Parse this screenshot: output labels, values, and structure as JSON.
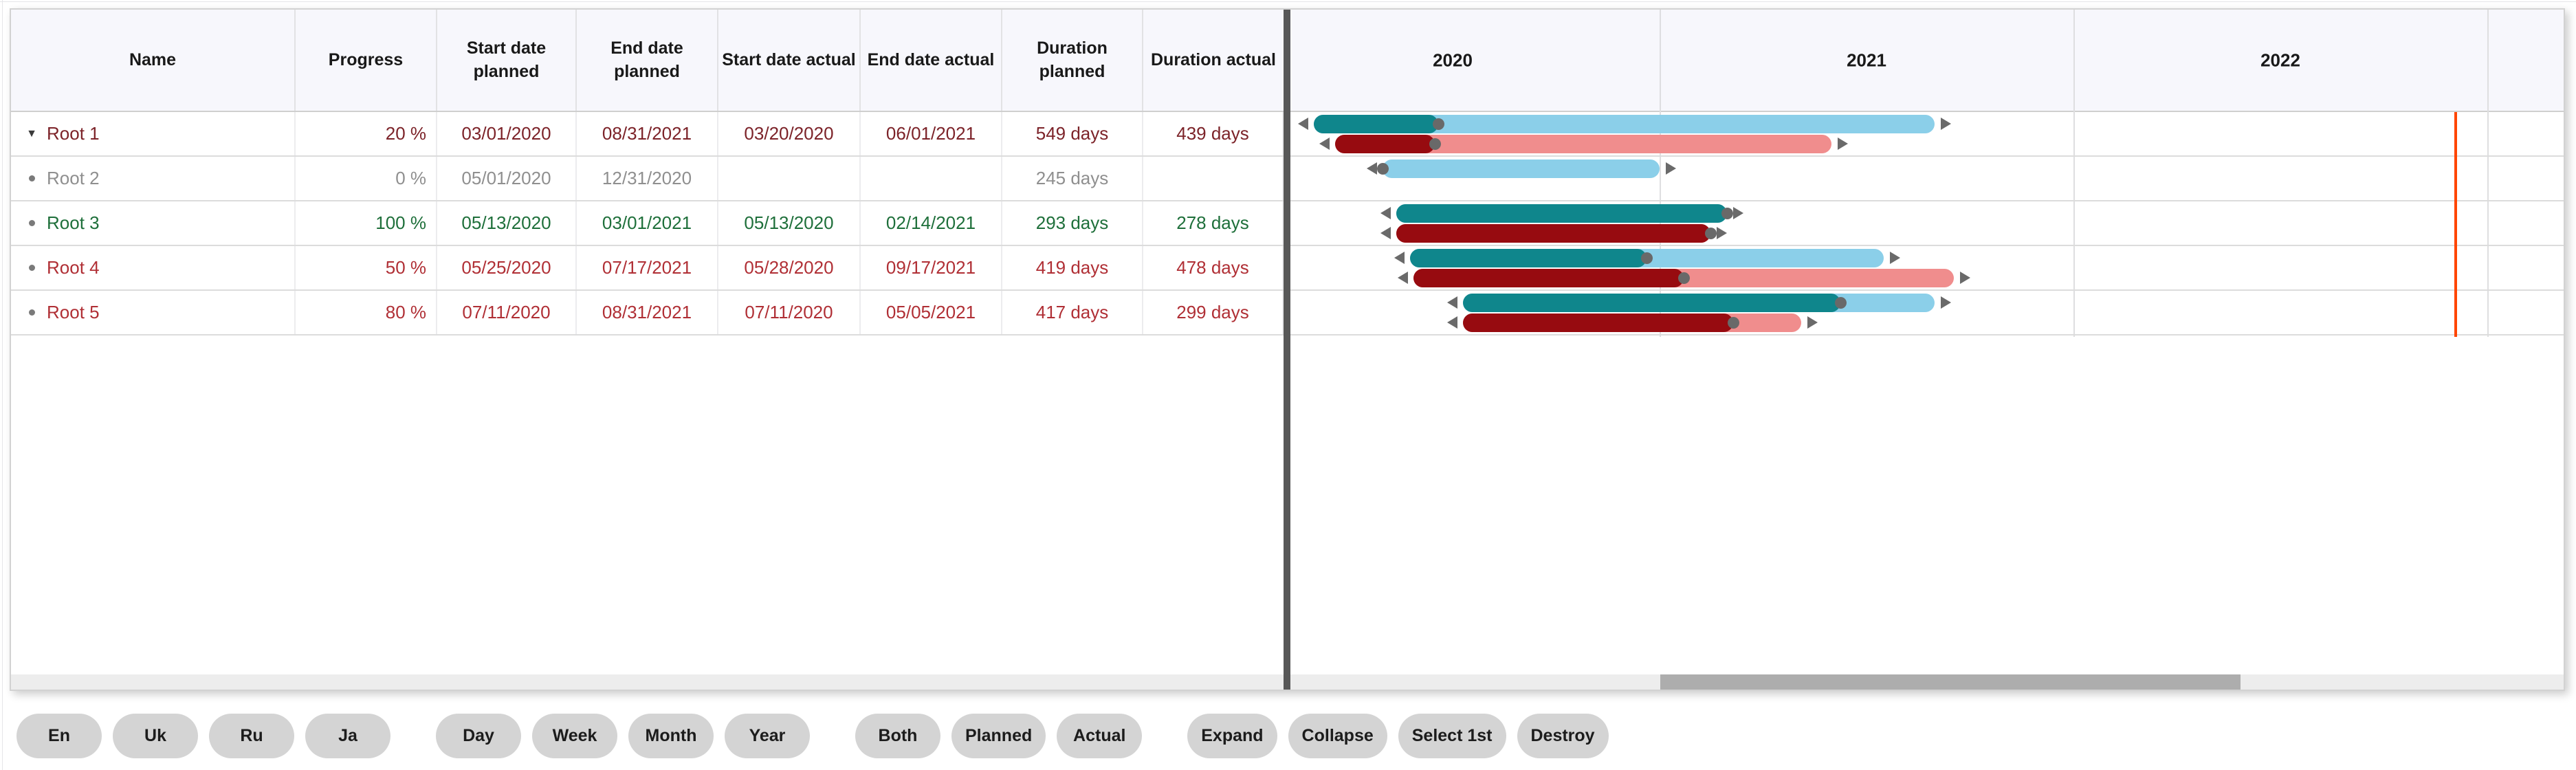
{
  "table": {
    "columns": [
      {
        "label": "Name"
      },
      {
        "label": "Progress"
      },
      {
        "label": "Start date\nplanned"
      },
      {
        "label": "End date\nplanned"
      },
      {
        "label": "Start date actual"
      },
      {
        "label": "End date actual"
      },
      {
        "label": "Duration\nplanned"
      },
      {
        "label": "Duration actual"
      }
    ],
    "rows": [
      {
        "name": "Root 1",
        "icon": "caret-down",
        "text_color": "#7c2329",
        "progress_label": "20 %",
        "progress": 20,
        "start_planned": "03/01/2020",
        "end_planned": "08/31/2021",
        "start_actual": "03/20/2020",
        "end_actual": "06/01/2021",
        "duration_planned": "549 days",
        "duration_actual": "439 days"
      },
      {
        "name": "Root 2",
        "icon": "dot",
        "text_color": "#8f8f8f",
        "progress_label": "0 %",
        "progress": 0,
        "start_planned": "05/01/2020",
        "end_planned": "12/31/2020",
        "start_actual": "",
        "end_actual": "",
        "duration_planned": "245 days",
        "duration_actual": ""
      },
      {
        "name": "Root 3",
        "icon": "dot",
        "text_color": "#1e6f3a",
        "progress_label": "100 %",
        "progress": 100,
        "start_planned": "05/13/2020",
        "end_planned": "03/01/2021",
        "start_actual": "05/13/2020",
        "end_actual": "02/14/2021",
        "duration_planned": "293 days",
        "duration_actual": "278 days"
      },
      {
        "name": "Root 4",
        "icon": "dot",
        "text_color": "#b02f35",
        "progress_label": "50 %",
        "progress": 50,
        "start_planned": "05/25/2020",
        "end_planned": "07/17/2021",
        "start_actual": "05/28/2020",
        "end_actual": "09/17/2021",
        "duration_planned": "419 days",
        "duration_actual": "478 days"
      },
      {
        "name": "Root 5",
        "icon": "dot",
        "text_color": "#b02f35",
        "progress_label": "80 %",
        "progress": 80,
        "start_planned": "07/11/2020",
        "end_planned": "08/31/2021",
        "start_actual": "07/11/2020",
        "end_actual": "05/05/2021",
        "duration_planned": "417 days",
        "duration_actual": "299 days"
      }
    ]
  },
  "timeline": {
    "years": [
      "2020",
      "2021",
      "2022"
    ]
  },
  "colors": {
    "planned_progress": "#0f868c",
    "planned_rest": "#8bcfe9",
    "actual_progress": "#970b10",
    "actual_rest": "#f08d8d",
    "handle": "#696969",
    "today_line": "#ff4500"
  },
  "toolbar": {
    "groups": [
      [
        "En",
        "Uk",
        "Ru",
        "Ja"
      ],
      [
        "Day",
        "Week",
        "Month",
        "Year"
      ],
      [
        "Both",
        "Planned",
        "Actual"
      ],
      [
        "Expand",
        "Collapse",
        "Select 1st",
        "Destroy"
      ]
    ]
  }
}
